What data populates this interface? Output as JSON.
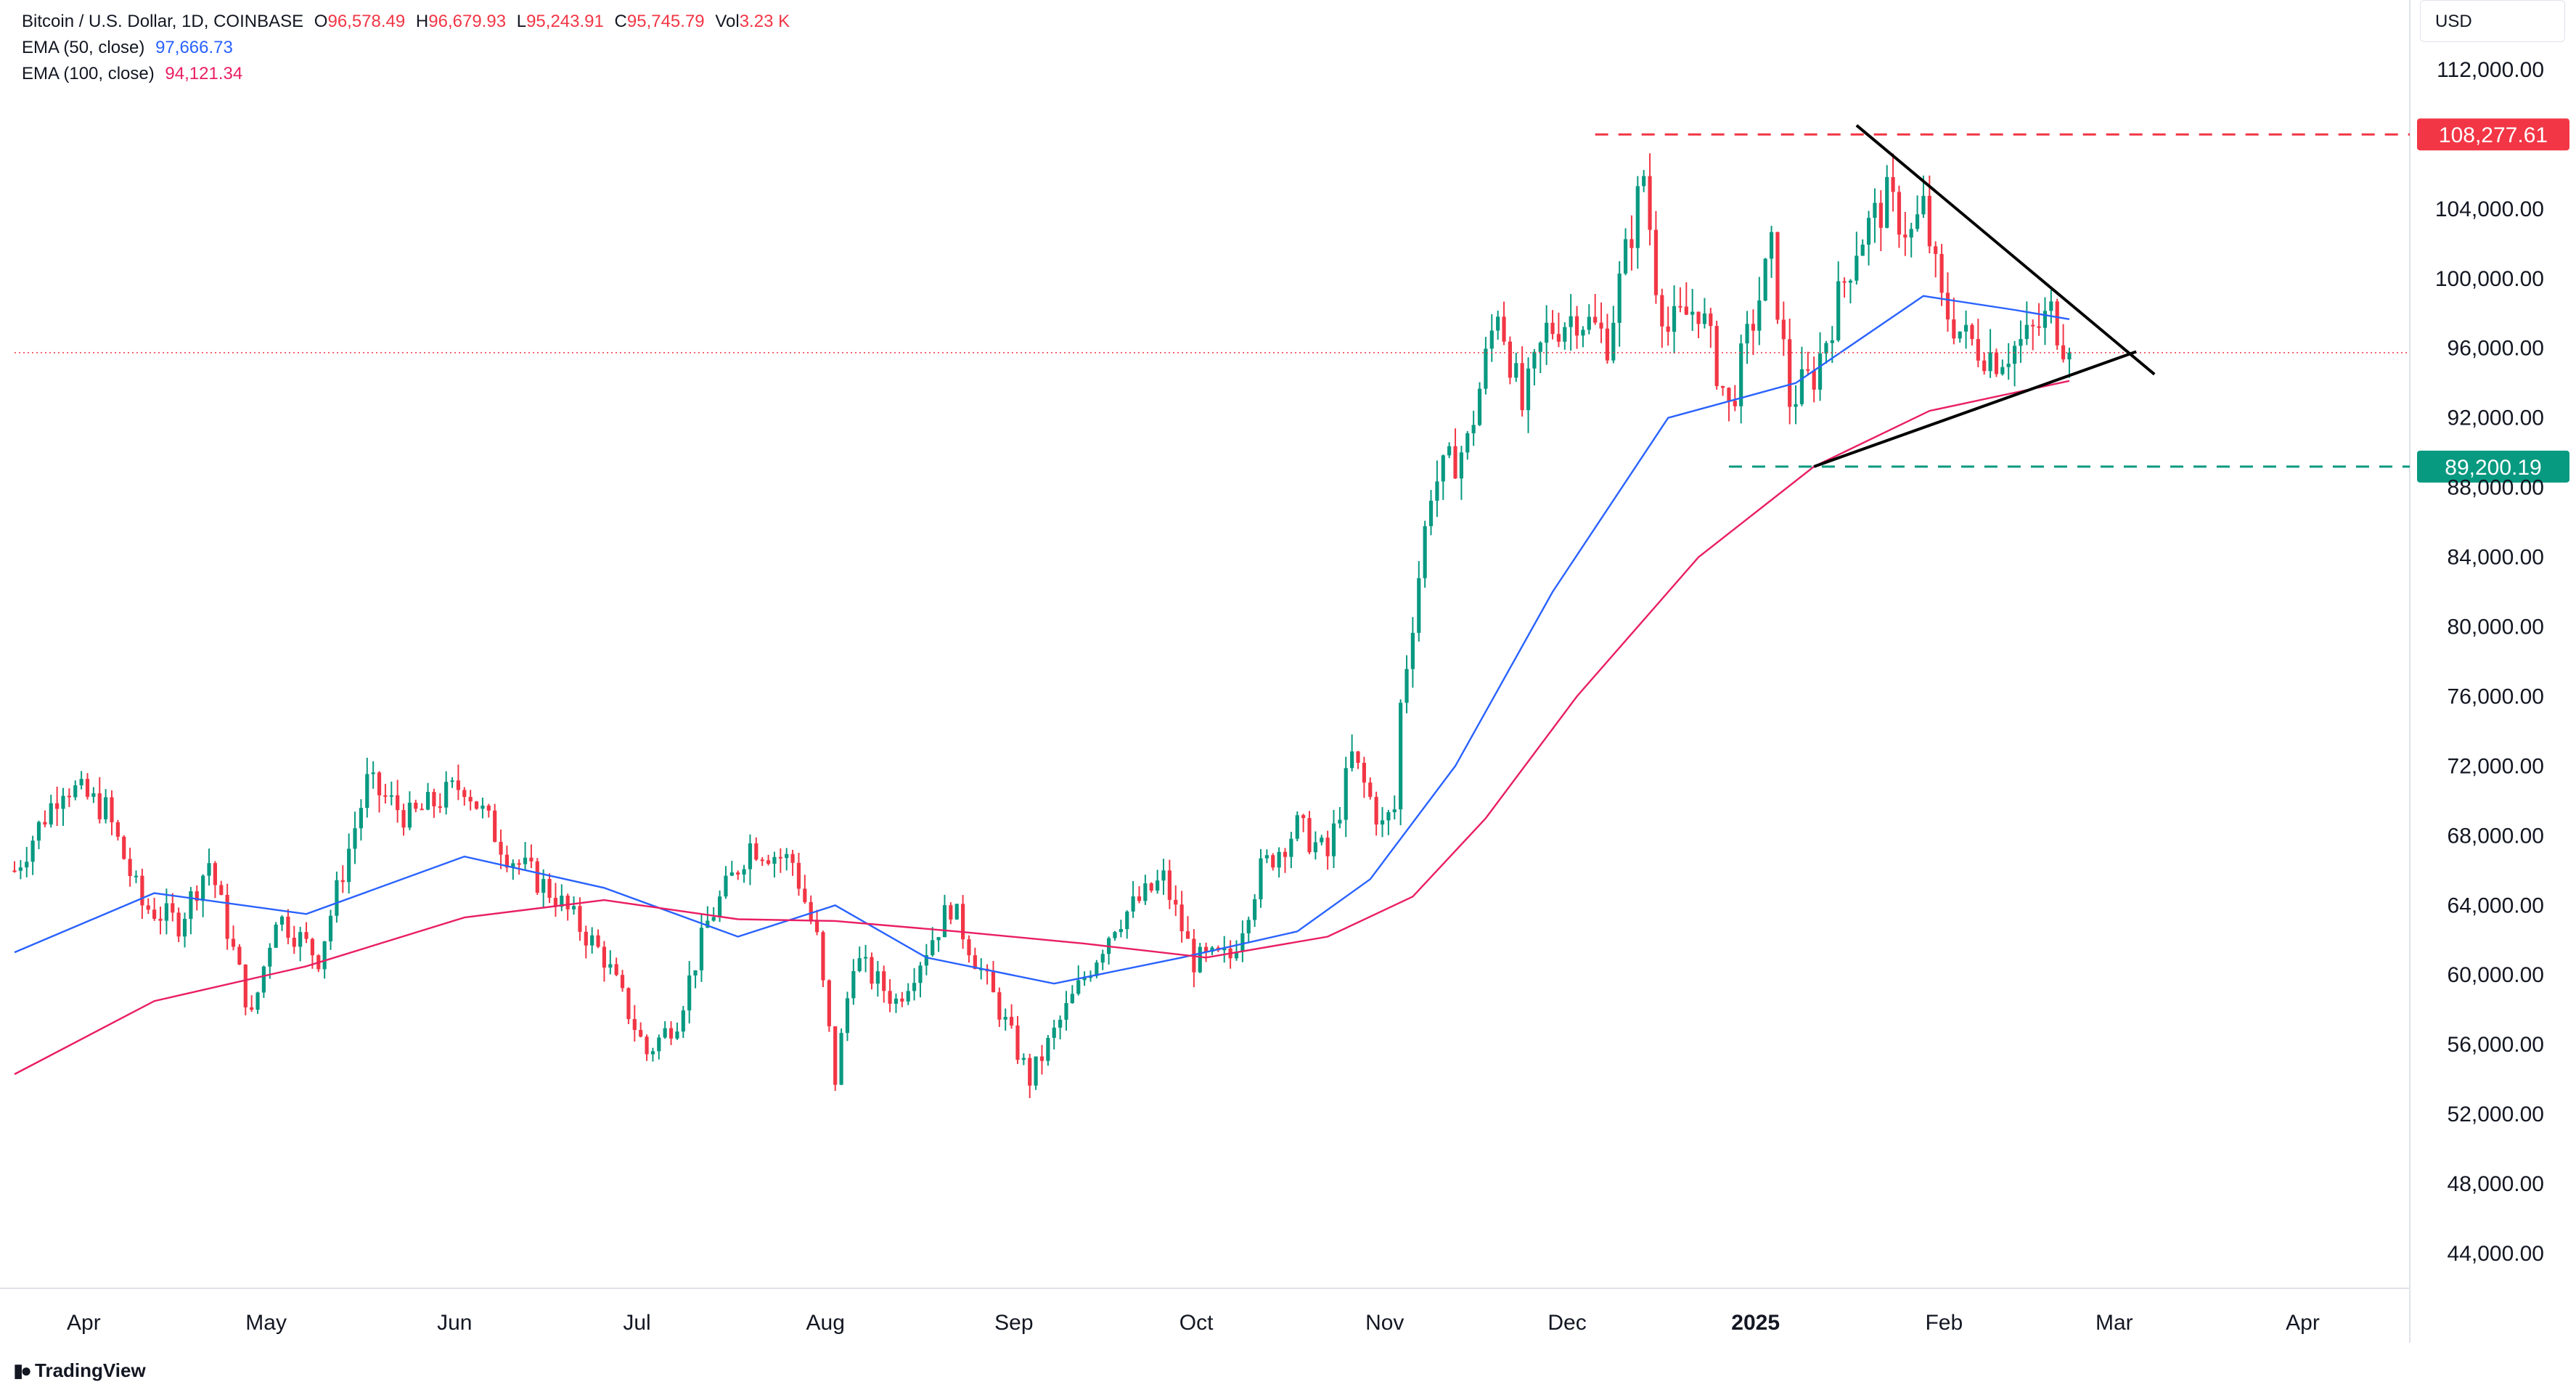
{
  "header": {
    "symbol": "Bitcoin / U.S. Dollar, 1D, COINBASE",
    "o_label": "O",
    "o_value": "96,578.49",
    "h_label": "H",
    "h_value": "96,679.93",
    "l_label": "L",
    "l_value": "95,243.91",
    "c_label": "C",
    "c_value": "95,745.79",
    "vol_label": "Vol",
    "vol_value": "3.23 K",
    "ema50_label": "EMA (50, close)",
    "ema50_value": "97,666.73",
    "ema100_label": "EMA (100, close)",
    "ema100_value": "94,121.34"
  },
  "currency": "USD",
  "branding": "TradingView",
  "colors": {
    "up": "#089981",
    "down": "#f23645",
    "ema50": "#2962ff",
    "ema100": "#e91e63",
    "resistance": "#f23645",
    "support": "#089981",
    "trendline": "#000000",
    "last_price": "#f23645"
  },
  "chart_data": {
    "type": "candlestick",
    "title": "Bitcoin / U.S. Dollar, 1D, COINBASE",
    "ylim": [
      42000,
      116000
    ],
    "y_ticks": [
      "112,000.00",
      "104,000.00",
      "100,000.00",
      "96,000.00",
      "92,000.00",
      "88,000.00",
      "84,000.00",
      "80,000.00",
      "76,000.00",
      "72,000.00",
      "68,000.00",
      "64,000.00",
      "60,000.00",
      "56,000.00",
      "52,000.00",
      "48,000.00",
      "44,000.00"
    ],
    "y_tick_values": [
      112000,
      104000,
      100000,
      96000,
      92000,
      88000,
      84000,
      80000,
      76000,
      72000,
      68000,
      64000,
      60000,
      56000,
      52000,
      48000,
      44000
    ],
    "x_ticks": [
      {
        "label": "Apr",
        "date": "2024-04-01",
        "bold": false
      },
      {
        "label": "May",
        "date": "2024-05-01",
        "bold": false
      },
      {
        "label": "Jun",
        "date": "2024-06-01",
        "bold": false
      },
      {
        "label": "Jul",
        "date": "2024-07-01",
        "bold": false
      },
      {
        "label": "Aug",
        "date": "2024-08-01",
        "bold": false
      },
      {
        "label": "Sep",
        "date": "2024-09-01",
        "bold": false
      },
      {
        "label": "Oct",
        "date": "2024-10-01",
        "bold": false
      },
      {
        "label": "Nov",
        "date": "2024-11-01",
        "bold": false
      },
      {
        "label": "Dec",
        "date": "2024-12-01",
        "bold": false
      },
      {
        "label": "2025",
        "date": "2025-01-01",
        "bold": true
      },
      {
        "label": "Feb",
        "date": "2025-02-01",
        "bold": false
      },
      {
        "label": "Mar",
        "date": "2025-03-01",
        "bold": false
      },
      {
        "label": "Apr",
        "date": "2025-04-01",
        "bold": false
      }
    ],
    "x_range": [
      "2024-03-23",
      "2025-04-21"
    ],
    "grid": false,
    "price_path": [
      [
        "2024-03-23",
        66000,
        "v"
      ],
      [
        "2024-03-31",
        71000,
        "v"
      ],
      [
        "2024-04-07",
        69500,
        "v"
      ],
      [
        "2024-04-13",
        64000,
        "v"
      ],
      [
        "2024-04-19",
        63000,
        "v"
      ],
      [
        "2024-04-24",
        66500,
        "v"
      ],
      [
        "2024-05-01",
        57500,
        "v"
      ],
      [
        "2024-05-05",
        63500,
        "v"
      ],
      [
        "2024-05-12",
        61000,
        "v"
      ],
      [
        "2024-05-20",
        71000,
        "v"
      ],
      [
        "2024-05-27",
        69000,
        "v"
      ],
      [
        "2024-06-05",
        71000,
        "v"
      ],
      [
        "2024-06-12",
        67000,
        "v"
      ],
      [
        "2024-06-20",
        64500,
        "v"
      ],
      [
        "2024-06-28",
        61000,
        "v"
      ],
      [
        "2024-07-05",
        55500,
        "v"
      ],
      [
        "2024-07-10",
        57500,
        "v"
      ],
      [
        "2024-07-15",
        63000,
        "v"
      ],
      [
        "2024-07-22",
        67500,
        "v"
      ],
      [
        "2024-07-29",
        66500,
        "v"
      ],
      [
        "2024-08-02",
        62000,
        "v"
      ],
      [
        "2024-08-05",
        54000,
        "v"
      ],
      [
        "2024-08-08",
        61000,
        "v"
      ],
      [
        "2024-08-15",
        58500,
        "v"
      ],
      [
        "2024-08-24",
        64000,
        "v"
      ],
      [
        "2024-09-01",
        58000,
        "v"
      ],
      [
        "2024-09-06",
        54000,
        "v"
      ],
      [
        "2024-09-12",
        58000,
        "v"
      ],
      [
        "2024-09-20",
        63000,
        "v"
      ],
      [
        "2024-09-28",
        65500,
        "v"
      ],
      [
        "2024-10-03",
        60800,
        "v"
      ],
      [
        "2024-10-09",
        61000,
        "v"
      ],
      [
        "2024-10-14",
        66000,
        "v"
      ],
      [
        "2024-10-20",
        68500,
        "v"
      ],
      [
        "2024-10-25",
        66800,
        "v"
      ],
      [
        "2024-10-29",
        72500,
        "v"
      ],
      [
        "2024-11-03",
        68500,
        "v"
      ],
      [
        "2024-11-05",
        69500,
        "v"
      ],
      [
        "2024-11-06",
        75500,
        "v"
      ],
      [
        "2024-11-11",
        88000,
        "v"
      ],
      [
        "2024-11-17",
        90500,
        "v"
      ],
      [
        "2024-11-22",
        98500,
        "v"
      ],
      [
        "2024-11-26",
        92500,
        "v"
      ],
      [
        "2024-11-30",
        97000,
        "v"
      ],
      [
        "2024-12-05",
        98000,
        "v"
      ],
      [
        "2024-12-10",
        96500,
        "v"
      ],
      [
        "2024-12-16",
        106000,
        "v"
      ],
      [
        "2024-12-18",
        100000,
        "v"
      ],
      [
        "2024-12-20",
        97000,
        "v"
      ],
      [
        "2024-12-25",
        98500,
        "v"
      ],
      [
        "2024-12-30",
        92500,
        "v"
      ],
      [
        "2025-01-06",
        101500,
        "v"
      ],
      [
        "2025-01-09",
        93000,
        "v"
      ],
      [
        "2025-01-13",
        94500,
        "v"
      ],
      [
        "2025-01-20",
        102000,
        "v"
      ],
      [
        "2025-01-25",
        104500,
        "v"
      ],
      [
        "2025-01-29",
        102500,
        "v"
      ],
      [
        "2025-01-31",
        104000,
        "v"
      ],
      [
        "2025-02-03",
        98500,
        "v"
      ],
      [
        "2025-02-07",
        96500,
        "v"
      ],
      [
        "2025-02-12",
        95500,
        "v"
      ],
      [
        "2025-02-17",
        96500,
        "v"
      ],
      [
        "2025-02-21",
        98000,
        "v"
      ],
      [
        "2025-02-24",
        95745,
        "v"
      ]
    ],
    "seed": 7,
    "last_price": 95745.79,
    "ema50_path": [
      [
        "2024-03-23",
        61300
      ],
      [
        "2024-04-15",
        64700
      ],
      [
        "2024-05-10",
        63500
      ],
      [
        "2024-06-05",
        66800
      ],
      [
        "2024-06-28",
        65000
      ],
      [
        "2024-07-20",
        62200
      ],
      [
        "2024-08-05",
        64000
      ],
      [
        "2024-08-20",
        61000
      ],
      [
        "2024-09-10",
        59500
      ],
      [
        "2024-10-01",
        61000
      ],
      [
        "2024-10-20",
        62500
      ],
      [
        "2024-11-01",
        65500
      ],
      [
        "2024-11-15",
        72000
      ],
      [
        "2024-12-01",
        82000
      ],
      [
        "2024-12-20",
        92000
      ],
      [
        "2025-01-10",
        94000
      ],
      [
        "2025-01-31",
        99000
      ],
      [
        "2025-02-15",
        98200
      ],
      [
        "2025-02-24",
        97666
      ]
    ],
    "ema100_path": [
      [
        "2024-03-23",
        54300
      ],
      [
        "2024-04-15",
        58500
      ],
      [
        "2024-05-10",
        60500
      ],
      [
        "2024-06-05",
        63300
      ],
      [
        "2024-06-28",
        64300
      ],
      [
        "2024-07-20",
        63200
      ],
      [
        "2024-08-05",
        63100
      ],
      [
        "2024-08-25",
        62500
      ],
      [
        "2024-09-15",
        61800
      ],
      [
        "2024-10-05",
        61000
      ],
      [
        "2024-10-25",
        62200
      ],
      [
        "2024-11-08",
        64500
      ],
      [
        "2024-11-20",
        69000
      ],
      [
        "2024-12-05",
        76000
      ],
      [
        "2024-12-25",
        84000
      ],
      [
        "2025-01-13",
        89200
      ],
      [
        "2025-02-01",
        92400
      ],
      [
        "2025-02-24",
        94121
      ]
    ],
    "resistance": {
      "value": 108277.61,
      "label": "108,277.61",
      "from": "2024-12-08",
      "to": "2025-04-21"
    },
    "support": {
      "value": 89200.19,
      "label": "89,200.19",
      "from": "2024-12-30",
      "to": "2025-04-21"
    },
    "trendlines": [
      {
        "from": [
          "2025-01-20",
          108800
        ],
        "to": [
          "2025-03-10",
          94500
        ]
      },
      {
        "from": [
          "2025-01-13",
          89200
        ],
        "to": [
          "2025-03-07",
          95800
        ]
      }
    ]
  }
}
